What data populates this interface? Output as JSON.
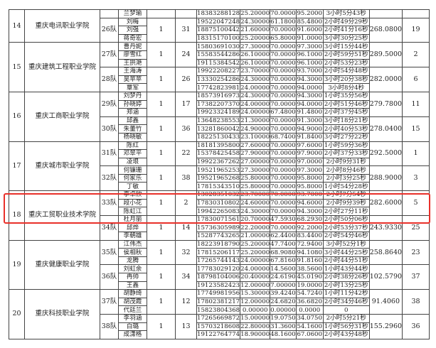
{
  "highlight_color": "#e8302a",
  "schools": [
    {
      "no": "14",
      "name": "重庆电讯职业学院",
      "teams": [
        0,
        1
      ]
    },
    {
      "no": "15",
      "name": "重庆建筑工程职业学院",
      "teams": [
        2,
        3
      ]
    },
    {
      "no": "16",
      "name": "重庆工商职业学院",
      "teams": [
        4,
        5
      ]
    },
    {
      "no": "17",
      "name": "重庆城市职业学院",
      "teams": [
        6,
        7
      ]
    },
    {
      "no": "18",
      "name": "重庆工贸职业技术学院",
      "teams": [
        8,
        9
      ]
    },
    {
      "no": "19",
      "name": "重庆健康职业学院",
      "teams": [
        10,
        11
      ]
    },
    {
      "no": "20",
      "name": "重庆科技职业学院",
      "teams": [
        12,
        13
      ]
    }
  ],
  "teams": [
    {
      "team": "",
      "flag": "",
      "count": "",
      "total": "",
      "rank": "",
      "members": [
        {
          "name": "兰梦瑜",
          "phone": "18383288128",
          "s1": "25.20000",
          "s2": "70.0000",
          "sum": "95.2000",
          "time": "3小时5分43秒"
        }
      ]
    },
    {
      "team": "26队",
      "flag": "1",
      "count": "31",
      "total": "268.0800",
      "rank": "19",
      "members": [
        {
          "name": "刘梅",
          "phone": "19522047248",
          "s1": "24.30000",
          "s2": "61.1800",
          "sum": "85.4800",
          "time": "2小时49分29秒"
        },
        {
          "name": "刘强",
          "phone": "18875100442",
          "s1": "21.60000",
          "s2": "70.0000",
          "sum": "91.6000",
          "time": "2小时41分16秒"
        },
        {
          "name": "蒋奇宏",
          "phone": "18315170100",
          "s1": "25.20000",
          "s2": "65.8000",
          "sum": "91.0000",
          "time": "3小时30分25秒"
        }
      ]
    },
    {
      "team": "27队",
      "flag": "1",
      "count": "24",
      "total": "289.5000",
      "rank": "2",
      "members": [
        {
          "name": "曹丹妮",
          "phone": "15803691030",
          "s1": "27.30000",
          "s2": "70.0000",
          "sum": "97.3000",
          "time": "3小时15分44秒"
        },
        {
          "name": "廖雪红",
          "phone": "15583544286",
          "s1": "26.10000",
          "s2": "70.0000",
          "sum": "96.1000",
          "time": "2小时59分51秒"
        },
        {
          "name": "王拱滟",
          "phone": "19115384542",
          "s1": "26.10000",
          "s2": "70.0000",
          "sum": "96.1000",
          "time": "2小时53分23秒"
        }
      ]
    },
    {
      "team": "28队",
      "flag": "1",
      "count": "26",
      "total": "282.0000",
      "rank": "6",
      "members": [
        {
          "name": "王海涛",
          "phone": "19922208227",
          "s1": "23.70000",
          "s2": "70.0000",
          "sum": "93.7000",
          "time": "2小时54分48秒"
        },
        {
          "name": "吴苹苹",
          "phone": "13330254286",
          "s1": "24.30000",
          "s2": "70.0000",
          "sum": "94.3000",
          "time": "3小时20分38秒"
        },
        {
          "name": "覃军",
          "phone": "17742823981",
          "s1": "24.00000",
          "s2": "70.0000",
          "sum": "94.0000",
          "time": "3小时8分4秒"
        }
      ]
    },
    {
      "team": "29队",
      "flag": "1",
      "count": "17",
      "total": "279.7800",
      "rank": "11",
      "members": [
        {
          "name": "刘梦丹",
          "phone": "18573916973",
          "s1": "24.30000",
          "s2": "70.0000",
          "sum": "94.3000",
          "time": "1小时35分56秒"
        },
        {
          "name": "孙晓婷",
          "phone": "17382207370",
          "s1": "24.00000",
          "s2": "70.0000",
          "sum": "94.0000",
          "time": "2小时51分46秒"
        },
        {
          "name": "郑涵",
          "phone": "19923324189",
          "s1": "24.00000",
          "s2": "67.4800",
          "sum": "91.4800",
          "time": "2小时37分45秒"
        }
      ]
    },
    {
      "team": "30队",
      "flag": "1",
      "count": "36",
      "total": "278.0400",
      "rank": "15",
      "members": [
        {
          "name": "邱鑫",
          "phone": "13648238553",
          "s1": "21.30000",
          "s2": "70.0000",
          "sum": "91.3000",
          "time": "3小时18分21秒"
        },
        {
          "name": "朱董竹",
          "phone": "13281860042",
          "s1": "24.90000",
          "s2": "70.0000",
          "sum": "94.9000",
          "time": "2小时40分53秒"
        },
        {
          "name": "杨晓敏",
          "phone": "18225130433",
          "s1": "23.10000",
          "s2": "68.7400",
          "sum": "91.8400",
          "time": "3小时27分22秒"
        }
      ]
    },
    {
      "team": "31队",
      "flag": "1",
      "count": "22",
      "total": "292.5000",
      "rank": "1",
      "members": [
        {
          "name": "陈红",
          "phone": "18181395800",
          "s1": "27.60000",
          "s2": "70.0000",
          "sum": "97.6000",
          "time": "1小时59分36秒"
        },
        {
          "name": "邓翠平",
          "phone": "15378425458",
          "s1": "27.90000",
          "s2": "70.0000",
          "sum": "97.9000",
          "time": "2小时37分33秒"
        },
        {
          "name": "凌垠",
          "phone": "19922367262",
          "s1": "27.00000",
          "s2": "70.0000",
          "sum": "97.0000",
          "time": "2小时9分31秒"
        }
      ]
    },
    {
      "team": "32队",
      "flag": "1",
      "count": "38",
      "total": "288.9000",
      "rank": "3",
      "members": [
        {
          "name": "何镰珊",
          "phone": "19521965253",
          "s1": "27.30000",
          "s2": "70.0000",
          "sum": "97.3000",
          "time": "2小时8分46秒"
        },
        {
          "name": "何家乐",
          "phone": "19521965268",
          "s1": "25.80000",
          "s2": "70.0000",
          "sum": "95.8000",
          "time": "2小时3分25秒"
        },
        {
          "name": "丁敏",
          "phone": "17815343510",
          "s1": "25.80000",
          "s2": "70.0000",
          "sum": "95.8000",
          "time": "1小时54分28秒"
        }
      ]
    },
    {
      "team": "33队",
      "flag": "1",
      "count": "2",
      "total": "282.6000",
      "rank": "5",
      "members": [
        {
          "name": "李卓欣",
          "phone": "13028351032",
          "s1": "23.70000",
          "s2": "70.0000",
          "sum": "93.7000",
          "time": "2小时7分54秒"
        },
        {
          "name": "段小花",
          "phone": "17830310802",
          "s1": "24.60000",
          "s2": "70.0000",
          "sum": "94.6000",
          "time": "2小时9分39秒"
        },
        {
          "name": "陈虹江",
          "phone": "19942265083",
          "s1": "24.30000",
          "s2": "70.0000",
          "sum": "94.3000",
          "time": "2小时27分11秒"
        }
      ]
    },
    {
      "team": "34队",
      "flag": "1",
      "count": "14",
      "total": "243.9330",
      "rank": "25",
      "members": [
        {
          "name": "杜月丽",
          "phone": "17830071561",
          "s1": "20.70000",
          "s2": "47.5930",
          "sum": "68.2930",
          "time": "2小时50分06秒"
        },
        {
          "name": "邱烨",
          "phone": "15736305989",
          "s1": "22.20000",
          "s2": "70.0000",
          "sum": "92.2000",
          "time": "2小时53分37秒"
        },
        {
          "name": "李朝雄",
          "phone": "15287743265",
          "s1": "21.00000",
          "s2": "62.4400",
          "sum": "83.4400",
          "time": "2小时54分46秒"
        }
      ]
    },
    {
      "team": "35队",
      "flag": "1",
      "count": "32",
      "total": "258.8640",
      "rank": "23",
      "members": [
        {
          "name": "江伟杰",
          "phone": "18223918790",
          "s1": "25.20000",
          "s2": "47.7400",
          "sum": "72.9400",
          "time": "3小时52分1秒"
        },
        {
          "name": "侯相秋",
          "phone": "17815206117",
          "s1": "25.20000",
          "s2": "68.9080",
          "sum": "94.1080",
          "time": "3小时44分25秒"
        },
        {
          "name": "龙腾",
          "phone": "17265744143",
          "s1": "24.00000",
          "s2": "67.8160",
          "sum": "91.8160",
          "time": "2小时44分51秒"
        }
      ]
    },
    {
      "team": "36队",
      "flag": "1",
      "count": "34",
      "total": "102.5790",
      "rank": "37",
      "members": [
        {
          "name": "刘虹余",
          "phone": "17783029120",
          "s1": "24.00000",
          "s2": "14.5600",
          "sum": "38.5600",
          "time": "1小时43分44秒"
        },
        {
          "name": "冉帅",
          "phone": "18798104006",
          "s1": "20.40000",
          "s2": "24.6190",
          "sum": "45.0190",
          "time": "2小时38分26秒"
        },
        {
          "name": "王鑫",
          "phone": "19123582423",
          "s1": "12.00000",
          "s2": "7.00000",
          "sum": "19.0000",
          "time": "2小时13分25秒"
        }
      ]
    },
    {
      "team": "37队",
      "flag": "1",
      "count": "12",
      "total": "91.4060",
      "rank": "38",
      "members": [
        {
          "name": "胡静绮",
          "phone": "17749981956",
          "s1": "15.30000",
          "s2": "39.4240",
          "sum": "54.7240",
          "time": "1小时11分42秒"
        },
        {
          "name": "胡茂霞",
          "phone": "17802381217",
          "s1": "12.00000",
          "s2": "24.6820",
          "sum": "36.6820",
          "time": "2小时34分46秒"
        },
        {
          "name": "代廷兰",
          "phone": "15823804368",
          "s1": "0.00000",
          "s2": "0.00000",
          "sum": "0.0000",
          "time": "0"
        }
      ]
    },
    {
      "team": "38队",
      "flag": "1",
      "count": "13",
      "total": "155.2960",
      "rank": "36",
      "members": [
        {
          "name": "李羽涵",
          "phone": "17265669872",
          "s1": "15.00000",
          "s2": "19.0750",
          "sum": "34.0750",
          "time": "2小时5分21秒"
        },
        {
          "name": "白璐",
          "phone": "15703218608",
          "s1": "22.80000",
          "s2": "31.3600",
          "sum": "54.1600",
          "time": "1小时56分31秒"
        },
        {
          "name": "成潇格",
          "phone": "19122764774",
          "s1": "18.90000",
          "s2": "48.1600",
          "sum": "67.0600",
          "time": "2小时43分48秒"
        }
      ]
    }
  ]
}
